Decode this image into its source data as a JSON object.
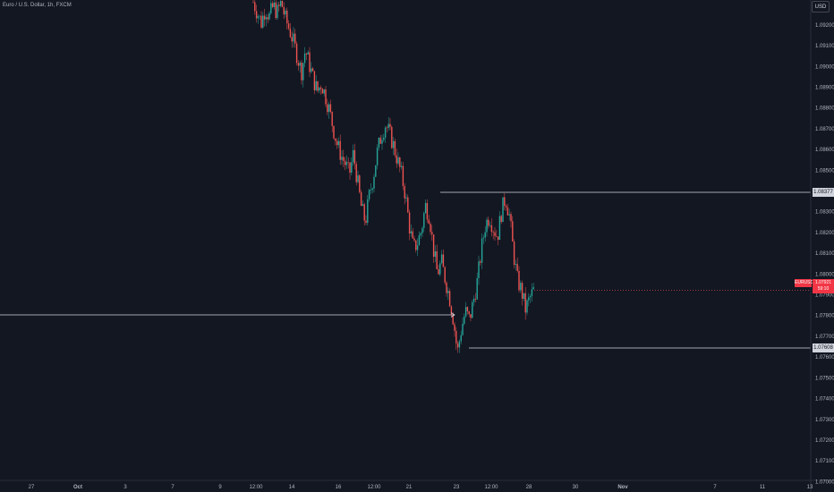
{
  "header": {
    "symbol_title": "Euro / U.S. Dollar, 1h, FXCM"
  },
  "price_axis": {
    "currency": "USD",
    "ticks": [
      "1.09200",
      "1.09100",
      "1.09000",
      "1.08900",
      "1.08800",
      "1.08700",
      "1.08600",
      "1.08500",
      "1.08400",
      "1.08300",
      "1.08200",
      "1.08100",
      "1.08000",
      "1.07900",
      "1.07800",
      "1.07700",
      "1.07600",
      "1.07500",
      "1.07400",
      "1.07300",
      "1.07200",
      "1.07100",
      "1.07000"
    ]
  },
  "time_axis": {
    "ticks": [
      "27",
      "Oct",
      "3",
      "7",
      "9",
      "12:00",
      "14",
      "16",
      "12:00",
      "21",
      "23",
      "12:00",
      "28",
      "30",
      "Nov",
      "7",
      "11",
      "13"
    ]
  },
  "labels": {
    "resistance_price": "1.08377",
    "support_price": "1.07608",
    "last_symbol": "EURUSD",
    "last_price": "1.07921",
    "countdown": "59:10"
  },
  "colors": {
    "background": "#131722",
    "up": "#26a69a",
    "down": "#ef5350",
    "line": "#d1d4dc",
    "axis_text": "#b2b5be"
  },
  "chart_data": {
    "type": "candlestick",
    "ylim": [
      1.0695,
      1.0932
    ],
    "levels": {
      "resistance": 1.08377,
      "support": 1.07608
    },
    "last_price": 1.07921,
    "path": [
      1.0931,
      1.0926,
      1.0921,
      1.0928,
      1.0924,
      1.0929,
      1.0926,
      1.0931,
      1.0923,
      1.0918,
      1.0912,
      1.0905,
      1.0897,
      1.0908,
      1.0901,
      1.0894,
      1.0888,
      1.0892,
      1.0886,
      1.0879,
      1.087,
      1.0862,
      1.0857,
      1.0853,
      1.0848,
      1.0858,
      1.0845,
      1.0832,
      1.0825,
      1.0838,
      1.0847,
      1.0859,
      1.0867,
      1.0872,
      1.0868,
      1.0862,
      1.0855,
      1.0848,
      1.0838,
      1.0823,
      1.0812,
      1.0815,
      1.0821,
      1.0833,
      1.0828,
      1.0812,
      1.08,
      1.0806,
      1.0797,
      1.0789,
      1.0778,
      1.0762,
      1.0774,
      1.0782,
      1.0778,
      1.0787,
      1.0797,
      1.0812,
      1.0824,
      1.0828,
      1.0822,
      1.0818,
      1.083,
      1.0837,
      1.0828,
      1.081,
      1.0797,
      1.0792,
      1.0783,
      1.0788,
      1.0792
    ]
  }
}
